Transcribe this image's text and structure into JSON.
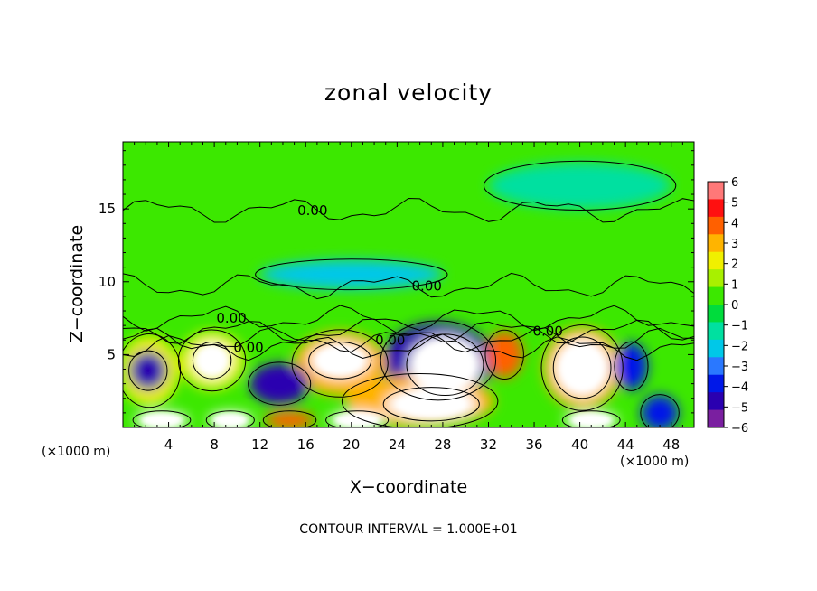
{
  "chart_data": {
    "type": "heatmap",
    "title": "zonal velocity",
    "xlabel": "X−coordinate",
    "ylabel": "Z−coordinate",
    "x_unit_label": "(×1000 m)",
    "xlim": [
      0,
      50
    ],
    "ylim": [
      0,
      19.6
    ],
    "x_ticks": [
      4,
      8,
      12,
      16,
      20,
      24,
      28,
      32,
      36,
      40,
      44,
      48
    ],
    "y_ticks": [
      5,
      10,
      15
    ],
    "colorbar": {
      "levels": [
        -6,
        -5,
        -4,
        -3,
        -2,
        -1,
        0,
        1,
        2,
        3,
        4,
        5,
        6
      ],
      "tick_labels": [
        "6",
        "5",
        "4",
        "3",
        "2",
        "1",
        "0",
        "−1",
        "−2",
        "−3",
        "−4",
        "−5",
        "−6"
      ],
      "colors": [
        "#7a1fa0",
        "#2a00b0",
        "#0018e8",
        "#2a78ff",
        "#00c8e8",
        "#00e0a0",
        "#00dc3c",
        "#3ce800",
        "#a8f000",
        "#f0f000",
        "#ffb400",
        "#ff6000",
        "#ff1010",
        "#ff7878"
      ]
    },
    "contour_labels": [
      {
        "text": "0.00",
        "x": 16.6,
        "y": 14.9
      },
      {
        "text": "0.00",
        "x": 26.6,
        "y": 9.7
      },
      {
        "text": "0.00",
        "x": 9.5,
        "y": 7.5
      },
      {
        "text": "0.00",
        "x": 11.0,
        "y": 5.5
      },
      {
        "text": "0.00",
        "x": 23.4,
        "y": 6.0
      },
      {
        "text": "0.00",
        "x": 37.2,
        "y": 6.6
      }
    ],
    "features": [
      {
        "x": 2.2,
        "y": 3.9,
        "value": -5,
        "rx": 1.6,
        "ry": 1.3
      },
      {
        "x": 2.3,
        "y": 3.9,
        "value": 3,
        "rx": 2.6,
        "ry": 2.4
      },
      {
        "x": 7.8,
        "y": 4.6,
        "value": 6,
        "rx": 1.6,
        "ry": 1.2
      },
      {
        "x": 7.8,
        "y": 4.6,
        "value": 3,
        "rx": 2.8,
        "ry": 2.0
      },
      {
        "x": 13.7,
        "y": 3.0,
        "value": -5,
        "rx": 2.6,
        "ry": 1.4
      },
      {
        "x": 19.0,
        "y": 4.6,
        "value": 6,
        "rx": 2.6,
        "ry": 1.2
      },
      {
        "x": 19.0,
        "y": 4.4,
        "value": 4,
        "rx": 4.0,
        "ry": 2.2
      },
      {
        "x": 28.2,
        "y": 4.3,
        "value": 6,
        "rx": 3.2,
        "ry": 2.0
      },
      {
        "x": 27.6,
        "y": 4.6,
        "value": -5,
        "rx": 4.8,
        "ry": 2.6
      },
      {
        "x": 27.0,
        "y": 1.6,
        "value": 6,
        "rx": 4.0,
        "ry": 1.1
      },
      {
        "x": 26.0,
        "y": 1.8,
        "value": 4,
        "rx": 6.5,
        "ry": 1.8
      },
      {
        "x": 33.4,
        "y": 5.0,
        "value": 5,
        "rx": 1.6,
        "ry": 1.6
      },
      {
        "x": 40.2,
        "y": 4.1,
        "value": 6,
        "rx": 2.4,
        "ry": 2.0
      },
      {
        "x": 40.2,
        "y": 4.1,
        "value": 4,
        "rx": 3.4,
        "ry": 2.8
      },
      {
        "x": 44.5,
        "y": 4.2,
        "value": -4,
        "rx": 1.4,
        "ry": 1.6
      },
      {
        "x": 3.4,
        "y": 0.5,
        "value": 6,
        "rx": 2.4,
        "ry": 0.6
      },
      {
        "x": 9.4,
        "y": 0.5,
        "value": 6,
        "rx": 2.0,
        "ry": 0.6
      },
      {
        "x": 14.6,
        "y": 0.5,
        "value": 5,
        "rx": 2.2,
        "ry": 0.6
      },
      {
        "x": 20.5,
        "y": 0.5,
        "value": 6,
        "rx": 2.6,
        "ry": 0.6
      },
      {
        "x": 41.0,
        "y": 0.5,
        "value": 6,
        "rx": 2.4,
        "ry": 0.6
      },
      {
        "x": 47.0,
        "y": 1.0,
        "value": -4,
        "rx": 1.6,
        "ry": 1.2
      },
      {
        "x": 20.0,
        "y": 10.5,
        "value": -2,
        "rx": 8.0,
        "ry": 1.0
      },
      {
        "x": 40.0,
        "y": 16.6,
        "value": -1,
        "rx": 8.0,
        "ry": 1.6
      }
    ]
  },
  "footnote": "CONTOUR INTERVAL =  1.000E+01"
}
